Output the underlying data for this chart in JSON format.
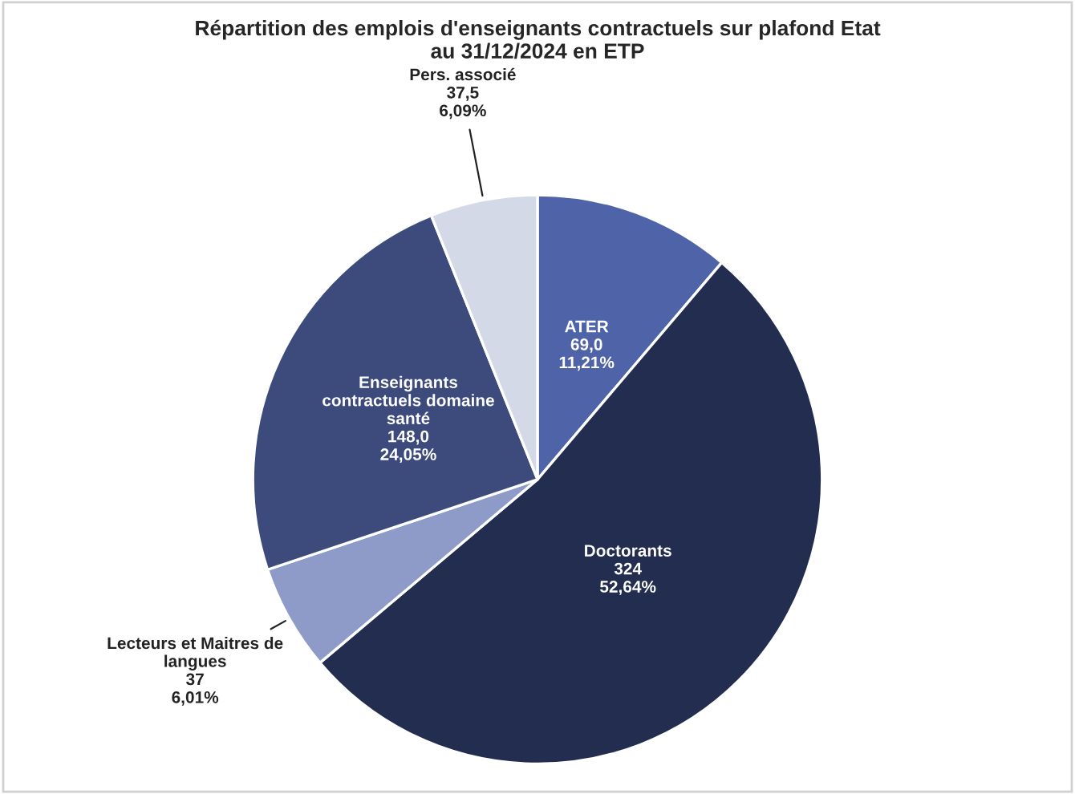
{
  "chart_data": {
    "type": "pie",
    "title": "Répartition des emplois d'enseignants contractuels sur plafond Etat\nau 31/12/2024 en ETP",
    "categories": [
      "ATER",
      "Doctorants",
      "Lecteurs et Maitres de\nlangues",
      "Enseignants\ncontractuels domaine\nsanté",
      "Pers. associé"
    ],
    "values": [
      69.0,
      324,
      37,
      148.0,
      37.5
    ],
    "value_labels": [
      "69,0\n11,21%",
      "324\n52,64%",
      "37\n6,01%",
      "148,0\n24,05%",
      "37,5\n6,09%"
    ],
    "colors": [
      "#4f64a8",
      "#222d50",
      "#8e9ac8",
      "#3d4a7c",
      "#d4d9e8"
    ],
    "legend": false
  }
}
